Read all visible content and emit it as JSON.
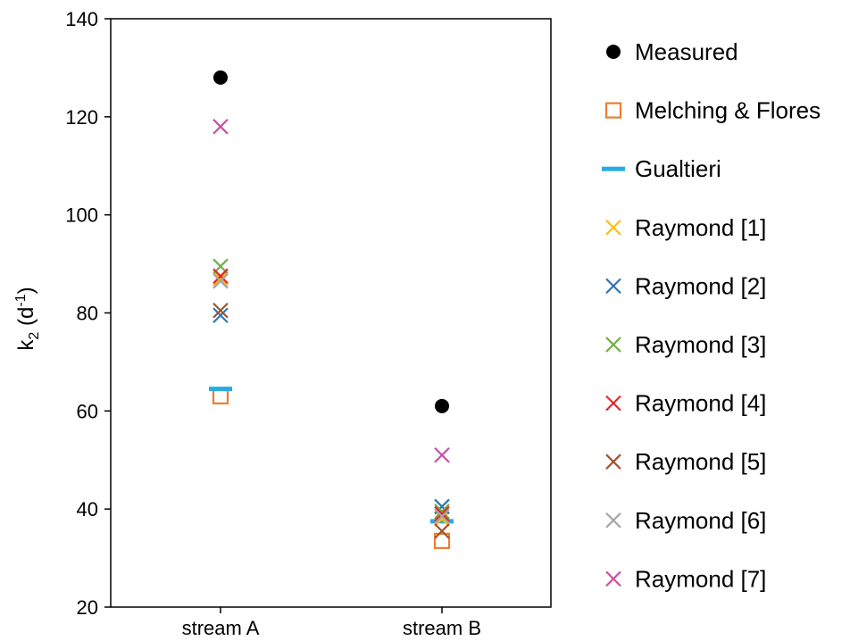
{
  "chart_data": {
    "type": "scatter",
    "categories": [
      "stream A",
      "stream B"
    ],
    "ylabel": {
      "base": "k",
      "sub": "2",
      "mid": " (d",
      "sup": "-1",
      "end": ")"
    },
    "ylim": [
      20,
      140
    ],
    "yticks": [
      "20",
      "40",
      "60",
      "80",
      "100",
      "120",
      "140"
    ],
    "grid": false,
    "legend_position": "right",
    "series": [
      {
        "name": "Measured",
        "marker": "dot",
        "color": "#000000",
        "values": [
          128,
          61
        ]
      },
      {
        "name": "Melching & Flores",
        "marker": "square",
        "color": "#ED7D31",
        "values": [
          63,
          33.5
        ]
      },
      {
        "name": "Gualtieri",
        "marker": "dash",
        "color": "#29ABE2",
        "values": [
          64.5,
          37.5
        ]
      },
      {
        "name": "Raymond [1]",
        "marker": "x",
        "color": "#FFC000",
        "values": [
          87,
          38
        ]
      },
      {
        "name": "Raymond [2]",
        "marker": "x",
        "color": "#2E75B6",
        "values": [
          79.5,
          40.5
        ]
      },
      {
        "name": "Raymond [3]",
        "marker": "x",
        "color": "#70AD47",
        "values": [
          89.5,
          39.5
        ]
      },
      {
        "name": "Raymond [4]",
        "marker": "x",
        "color": "#E8262B",
        "values": [
          87.5,
          39
        ]
      },
      {
        "name": "Raymond [5]",
        "marker": "x",
        "color": "#A5522D",
        "values": [
          80.5,
          35.5
        ]
      },
      {
        "name": "Raymond [6]",
        "marker": "x",
        "color": "#A6A6A6",
        "values": [
          86.5,
          38.5
        ]
      },
      {
        "name": "Raymond [7]",
        "marker": "x",
        "color": "#CC4FA0",
        "values": [
          118,
          51
        ]
      }
    ]
  }
}
